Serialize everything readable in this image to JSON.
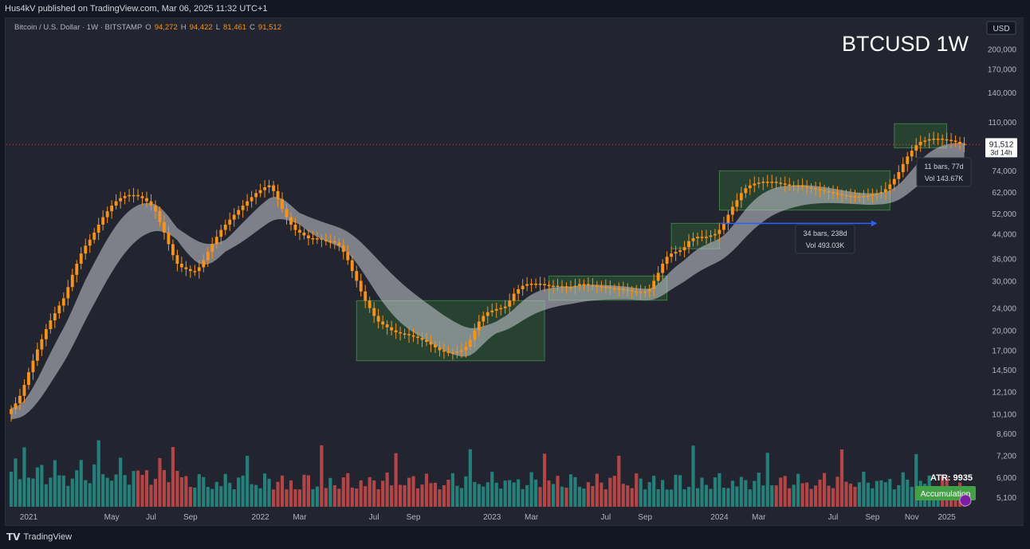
{
  "publisher_line": "Hus4kV published on TradingView.com, Mar 06, 2025 11:32 UTC+1",
  "brand": "TradingView",
  "chart_data": {
    "type": "candlestick",
    "title": "BTCUSD 1W",
    "symbol_line": {
      "desc": "Bitcoin / U.S. Dollar · 1W · BITSTAMP",
      "o_label": "O",
      "o_value": "94,272",
      "h_label": "H",
      "h_value": "94,422",
      "l_label": "L",
      "l_value": "81,461",
      "c_label": "C",
      "c_value": "91,512"
    },
    "currency": "USD",
    "scale": "log",
    "ylim": [
      4600,
      230000
    ],
    "price_ticks": [
      200000,
      170000,
      140000,
      110000,
      74000,
      62000,
      52000,
      44000,
      36000,
      30000,
      24000,
      20000,
      17000,
      14500,
      12100,
      10100,
      8600,
      7200,
      6000,
      5100
    ],
    "price_tick_labels": [
      "200,000",
      "170,000",
      "140,000",
      "110,000",
      "74,000",
      "62,000",
      "52,000",
      "44,000",
      "36,000",
      "30,000",
      "24,000",
      "20,000",
      "17,000",
      "14,500",
      "12,100",
      "10,100",
      "8,600",
      "7,200",
      "6,000",
      "5,100"
    ],
    "time_labels": [
      "2021",
      "May",
      "Jul",
      "Sep",
      "2022",
      "Mar",
      "Jul",
      "Sep",
      "2023",
      "Mar",
      "Jul",
      "Sep",
      "2024",
      "Mar",
      "Jul",
      "Sep",
      "Nov",
      "2025"
    ],
    "time_label_index": [
      4,
      23,
      32,
      41,
      57,
      66,
      83,
      92,
      109,
      118,
      135,
      144,
      161,
      170,
      187,
      196,
      205,
      213
    ],
    "last_price": "91,512",
    "countdown": "3d 14h",
    "close_prices": [
      10500,
      11000,
      11700,
      12800,
      14200,
      15600,
      17100,
      18600,
      20200,
      21700,
      23000,
      24500,
      26000,
      28500,
      31500,
      34500,
      37500,
      40000,
      42000,
      44500,
      47500,
      50500,
      53000,
      55500,
      57500,
      59000,
      60000,
      60500,
      60500,
      60000,
      59000,
      57500,
      55500,
      53000,
      48500,
      44500,
      40500,
      37000,
      34500,
      33500,
      33000,
      32500,
      32500,
      33500,
      35500,
      38000,
      40500,
      43000,
      45500,
      47500,
      49500,
      51500,
      53500,
      55500,
      57500,
      59500,
      61500,
      63000,
      64500,
      65500,
      62500,
      58500,
      54000,
      50500,
      47500,
      45500,
      44500,
      43500,
      42500,
      42500,
      42500,
      42000,
      41500,
      41500,
      41000,
      40000,
      38000,
      35500,
      32500,
      30000,
      27500,
      25500,
      24000,
      22500,
      21500,
      21000,
      20500,
      20000,
      19700,
      19500,
      19400,
      19200,
      19000,
      18800,
      18500,
      18200,
      17800,
      17400,
      17000,
      16800,
      16700,
      16700,
      16800,
      17000,
      17500,
      18500,
      20000,
      21500,
      22500,
      23200,
      23500,
      23800,
      24000,
      24300,
      25500,
      27000,
      28000,
      28800,
      29200,
      29300,
      29300,
      29200,
      29000,
      28800,
      28800,
      28700,
      28700,
      28500,
      28500,
      28800,
      29200,
      29200,
      29000,
      28800,
      28700,
      28600,
      28500,
      28300,
      28200,
      28100,
      28000,
      27800,
      27500,
      27400,
      27400,
      27500,
      28000,
      30000,
      32000,
      34500,
      36500,
      37500,
      38000,
      38500,
      39500,
      41500,
      42500,
      43000,
      43000,
      43000,
      43500,
      44000,
      45500,
      48000,
      51500,
      55000,
      58000,
      61500,
      64000,
      65500,
      66500,
      67000,
      67500,
      67500,
      67500,
      67000,
      66500,
      66000,
      65500,
      65500,
      65500,
      65000,
      64500,
      64000,
      63500,
      63000,
      62500,
      62000,
      61500,
      61000,
      60500,
      60200,
      60000,
      59800,
      59800,
      60000,
      60300,
      60800,
      61300,
      62000,
      63500,
      66000,
      69000,
      73000,
      78000,
      83000,
      87000,
      91000,
      93500,
      94500,
      95500,
      96000,
      96000,
      95500,
      95000,
      94500,
      93500,
      92000,
      91000
    ],
    "ma_band_note": "EMA ribbon",
    "annotations": [
      {
        "line1": "11 bars, 77d",
        "line2": "Vol 143.67K"
      },
      {
        "line1": "34 bars, 238d",
        "line2": "Vol 493.03K"
      }
    ],
    "range_boxes": [
      {
        "from": 105,
        "to": 162,
        "low": 15600,
        "high": 25500
      },
      {
        "from": 163,
        "to": 199,
        "low": 25600,
        "high": 31200
      },
      {
        "from": 200,
        "to": 214,
        "low": 39000,
        "high": 48000
      },
      {
        "from": 215,
        "to": 266,
        "low": 53500,
        "high": 73800
      },
      {
        "from": 267,
        "to": 283,
        "low": 89000,
        "high": 108500
      }
    ],
    "atr_label": "ATR: 9935",
    "accumulation_label": "Accumulation",
    "colors": {
      "up": "#f7931a",
      "down": "#f7931a",
      "ribbon": "#c8ccd4",
      "box_fill": "#2e5b35",
      "box_stroke": "#4caf50",
      "vol_up": "#26a69a",
      "vol_down": "#ef5350",
      "arrow": "#2962ff",
      "accumulation": "#43a047"
    }
  }
}
